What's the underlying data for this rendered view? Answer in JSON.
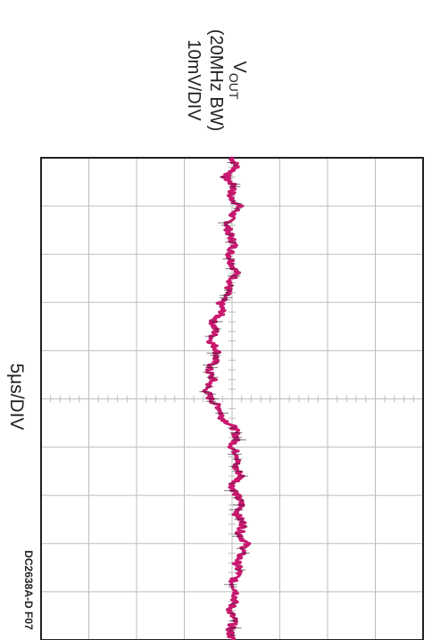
{
  "chart_data": {
    "type": "line",
    "orientation": "rotated-90-clockwise",
    "time_label": "5μs/DIV",
    "channel": {
      "name_main": "V",
      "name_sub": "OUT",
      "bandwidth": "(20MHz BW)",
      "scale": "10mV/DIV"
    },
    "figure_id": "DC2638A-D F07",
    "divisions": {
      "time": 10,
      "amplitude": 8
    },
    "grid": true,
    "t_us": [
      0,
      1,
      2,
      3,
      4,
      5,
      6,
      7,
      8,
      9,
      10,
      11,
      12,
      13,
      14,
      15,
      16,
      17,
      18,
      19,
      20,
      21,
      22,
      23,
      24,
      25,
      26,
      27,
      28,
      29,
      30,
      31,
      32,
      33,
      34,
      35,
      36,
      37,
      38,
      39,
      40,
      41,
      42,
      43,
      44,
      45,
      46,
      47,
      48,
      49,
      50
    ],
    "v_mv": [
      0.0,
      1.0,
      -1.5,
      0.5,
      -0.5,
      1.5,
      0.0,
      -1.0,
      -0.5,
      0.5,
      -0.5,
      0.0,
      1.0,
      -0.5,
      -1.0,
      -2.5,
      -2.0,
      -4.0,
      -3.5,
      -4.5,
      -3.0,
      -3.5,
      -5.0,
      -4.0,
      -5.5,
      -4.5,
      -2.5,
      -2.0,
      0.5,
      1.0,
      0.0,
      1.5,
      0.5,
      2.0,
      0.0,
      1.0,
      2.0,
      1.0,
      2.5,
      1.5,
      3.0,
      2.0,
      1.0,
      1.5,
      0.0,
      1.0,
      0.5,
      -0.5,
      0.5,
      -0.5,
      0.0
    ],
    "trace_color": "#c8186e",
    "noise_color": "#2a1a2a"
  }
}
